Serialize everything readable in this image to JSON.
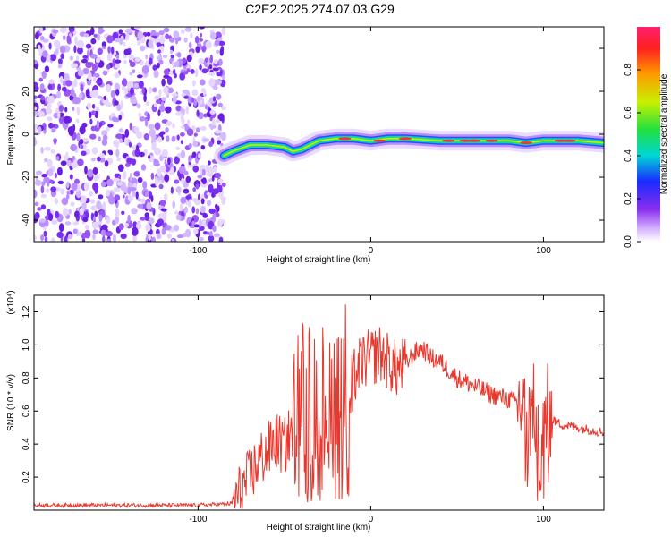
{
  "title": "C2E2.2025.274.07.03.G29",
  "colors": {
    "line": "#e8382e",
    "axes": "#000000",
    "scatter": "#7a2ef0"
  },
  "chart_data": [
    {
      "type": "heatmap",
      "title": "",
      "xlabel": "Height of straight line (km)",
      "ylabel": "Frequency (Hz)",
      "xlim": [
        -195,
        135
      ],
      "ylim": [
        -50,
        50
      ],
      "x_ticks": [
        -100,
        0,
        100
      ],
      "y_ticks": [
        -40,
        -20,
        0,
        20,
        40
      ],
      "noise_region_x": [
        -195,
        -85
      ],
      "signal_trace": {
        "x": [
          -85,
          -80,
          -70,
          -60,
          -50,
          -45,
          -40,
          -30,
          -20,
          -10,
          0,
          10,
          20,
          40,
          60,
          80,
          90,
          100,
          110,
          120,
          135
        ],
        "y": [
          -10,
          -8,
          -5,
          -5,
          -6,
          -8,
          -7,
          -3,
          -2,
          -2,
          -3,
          -2,
          -2,
          -3,
          -3,
          -3,
          -4,
          -3,
          -3,
          -3,
          -4
        ]
      },
      "colorbar": {
        "label": "Normalized spectral amplitude",
        "range": [
          0.0,
          1.0
        ],
        "ticks": [
          0.0,
          0.2,
          0.4,
          0.6,
          0.8
        ],
        "tick_labels": [
          "0.0",
          "0.2",
          "0.4",
          "0.6",
          "0.8"
        ]
      }
    },
    {
      "type": "line",
      "title": "",
      "xlabel": "Height of straight line (km)",
      "ylabel": "SNR (10 * v/v)",
      "y_multiplier": "(x10⁴)",
      "xlim": [
        -195,
        135
      ],
      "ylim": [
        0,
        1.3
      ],
      "x_ticks": [
        -100,
        0,
        100
      ],
      "y_ticks": [
        0.2,
        0.4,
        0.6,
        0.8,
        1.0,
        1.2
      ],
      "y_tick_labels": [
        "0.2",
        "0.4",
        "0.6",
        "0.8",
        "1.0",
        "1.2"
      ],
      "series": [
        {
          "name": "SNR",
          "x": [
            -195,
            -150,
            -100,
            -80,
            -75,
            -70,
            -65,
            -60,
            -55,
            -50,
            -45,
            -42,
            -40,
            -38,
            -35,
            -30,
            -25,
            -20,
            -15,
            -10,
            -5,
            0,
            5,
            10,
            15,
            20,
            25,
            30,
            35,
            40,
            45,
            50,
            60,
            70,
            80,
            85,
            88,
            90,
            95,
            98,
            100,
            102,
            105,
            110,
            120,
            130,
            135
          ],
          "values": [
            0.03,
            0.03,
            0.03,
            0.04,
            0.12,
            0.2,
            0.3,
            0.35,
            0.42,
            0.38,
            0.5,
            0.75,
            0.85,
            0.6,
            0.7,
            0.75,
            0.65,
            0.8,
            0.85,
            0.8,
            0.9,
            0.92,
            0.95,
            0.9,
            0.85,
            0.88,
            0.95,
            0.98,
            0.92,
            0.9,
            0.85,
            0.8,
            0.75,
            0.7,
            0.67,
            0.65,
            0.62,
            0.55,
            0.6,
            0.45,
            0.4,
            0.6,
            0.55,
            0.52,
            0.5,
            0.48,
            0.47
          ]
        }
      ]
    }
  ]
}
